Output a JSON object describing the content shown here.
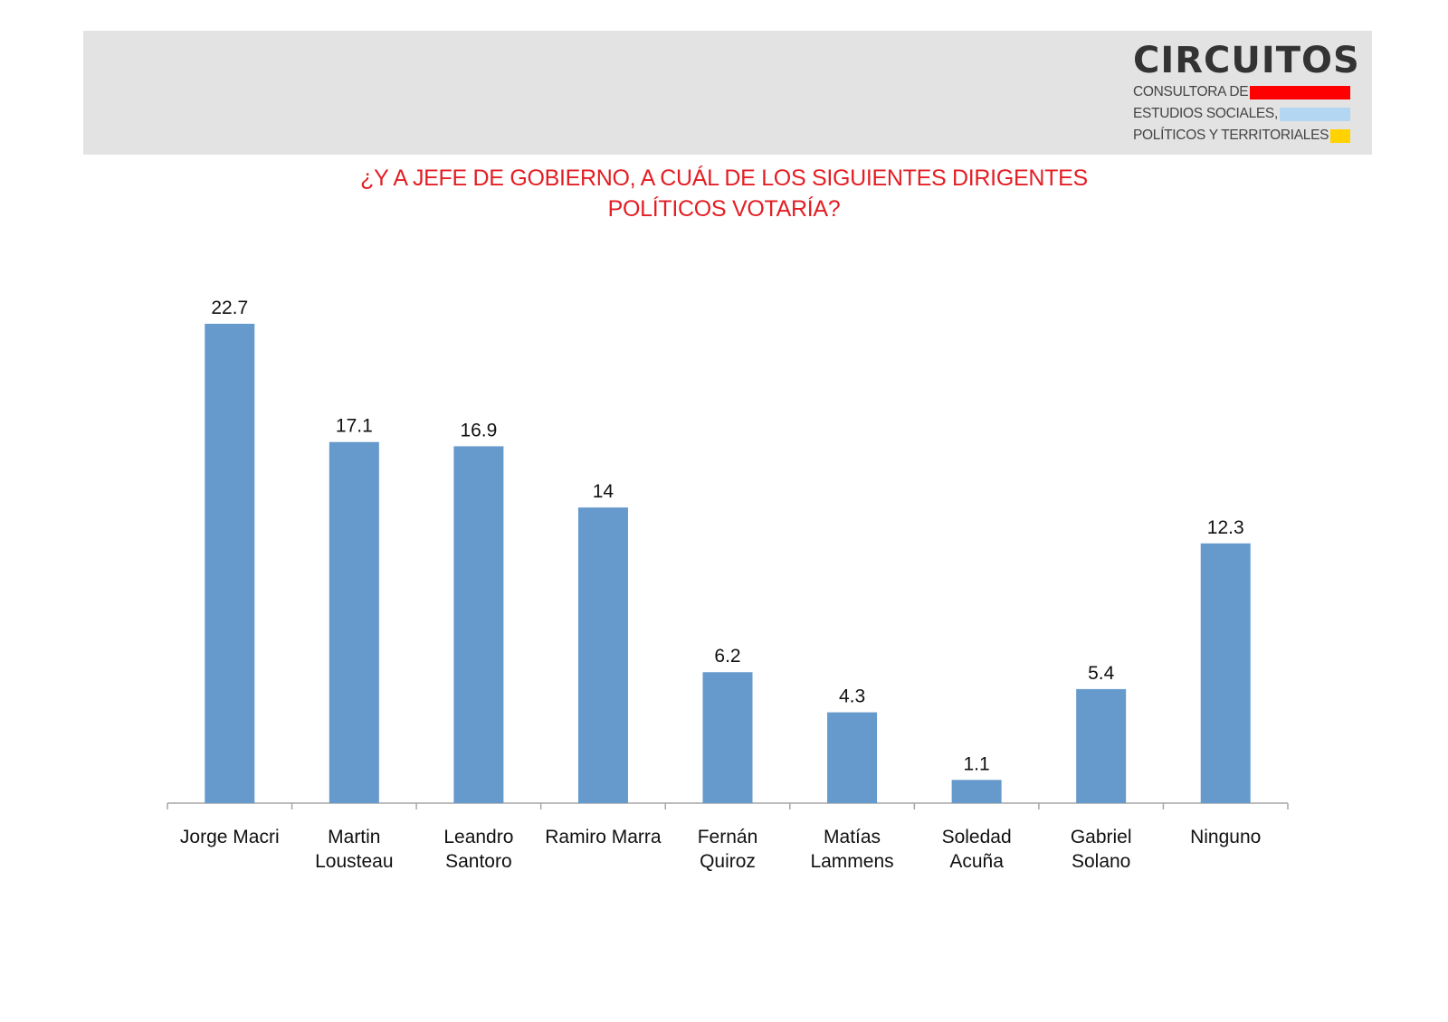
{
  "logo": {
    "name": "CIRCUITOS",
    "lines": [
      "CONSULTORA DE",
      "ESTUDIOS SOCIALES,",
      "POLÍTICOS Y TERRITORIALES"
    ],
    "line_colors": [
      "#ff0000",
      "#b3d7f2",
      "#ffd200"
    ]
  },
  "title_lines": [
    "¿Y A JEFE DE GOBIERNO, A CUÁL DE LOS SIGUIENTES DIRIGENTES",
    "POLÍTICOS VOTARÍA?"
  ],
  "colors": {
    "bar": "#6699cc",
    "title": "#e31e24",
    "axis": "#a6a6a6"
  },
  "chart_data": {
    "type": "bar",
    "title": "¿Y A JEFE DE GOBIERNO, A CUÁL DE LOS SIGUIENTES DIRIGENTES POLÍTICOS VOTARÍA?",
    "categories": [
      [
        "Jorge Macri"
      ],
      [
        "Martin",
        "Lousteau"
      ],
      [
        "Leandro",
        "Santoro"
      ],
      [
        "Ramiro Marra"
      ],
      [
        "Fernán",
        "Quiroz"
      ],
      [
        "Matías",
        "Lammens"
      ],
      [
        "Soledad",
        "Acuña"
      ],
      [
        "Gabriel",
        "Solano"
      ],
      [
        "Ninguno"
      ]
    ],
    "values": [
      22.7,
      17.1,
      16.9,
      14,
      6.2,
      4.3,
      1.1,
      5.4,
      12.3
    ],
    "value_labels": [
      "22.7",
      "17.1",
      "16.9",
      "14",
      "6.2",
      "4.3",
      "1.1",
      "5.4",
      "12.3"
    ],
    "ylim": [
      0,
      22.7
    ],
    "grid": false,
    "legend": "none",
    "xlabel": "",
    "ylabel": ""
  }
}
